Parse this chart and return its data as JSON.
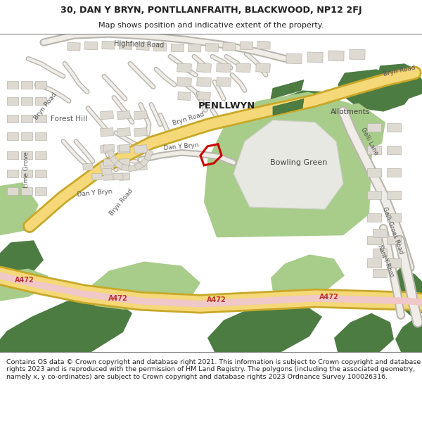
{
  "title_line1": "30, DAN Y BRYN, PONTLLANFRAITH, BLACKWOOD, NP12 2FJ",
  "title_line2": "Map shows position and indicative extent of the property.",
  "footer_text": "Contains OS data © Crown copyright and database right 2021. This information is subject to Crown copyright and database rights 2023 and is reproduced with the permission of HM Land Registry. The polygons (including the associated geometry, namely x, y co-ordinates) are subject to Crown copyright and database rights 2023 Ordnance Survey 100026316.",
  "header_bg": "#ffffff",
  "footer_bg": "#ffffff",
  "map_bg": "#f5f3ef",
  "green_dark": "#4d7c42",
  "green_light": "#a8cc8a",
  "building_fill": "#dedad2",
  "building_outline": "#b8b4aa",
  "road_yellow_outer": "#c8a828",
  "road_yellow_inner": "#f5d878",
  "road_pink": "#f0c8c8",
  "road_gray_outer": "#b8b5ae",
  "road_gray_inner": "#f0ede8",
  "red_plot": "#cc0000",
  "text_dark": "#222222",
  "text_road": "#555555",
  "text_a472": "#bb3333"
}
